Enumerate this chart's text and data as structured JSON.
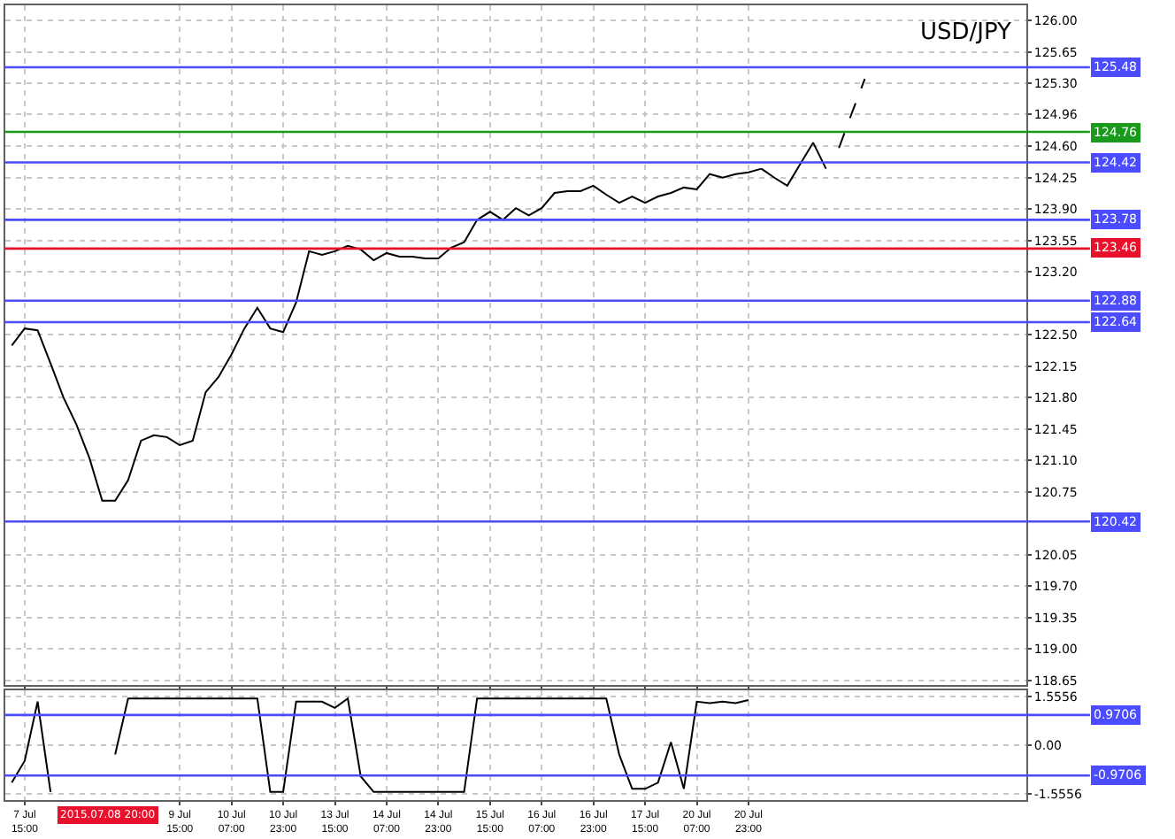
{
  "chart_data": [
    {
      "type": "line",
      "title": "USD/JPY",
      "series": [
        {
          "color": "#000000",
          "values": [
            122.38,
            122.57,
            122.55,
            122.18,
            121.8,
            121.5,
            121.13,
            120.65,
            120.65,
            120.88,
            121.32,
            121.38,
            121.36,
            121.27,
            121.32,
            121.86,
            122.03,
            122.28,
            122.57,
            122.8,
            122.57,
            122.53,
            122.86,
            123.43,
            123.39,
            123.43,
            123.49,
            123.45,
            123.33,
            123.41,
            123.37,
            123.37,
            123.35,
            123.35,
            123.47,
            123.53,
            123.78,
            123.87,
            123.78,
            123.91,
            123.83,
            123.91,
            124.08,
            124.1,
            124.1,
            124.16,
            124.06,
            123.97,
            124.04,
            123.97,
            124.04,
            124.08,
            124.14,
            124.12,
            124.29,
            124.25,
            124.29,
            124.31,
            124.35,
            null,
            null,
            null,
            null,
            null,
            null,
            null,
            null,
            null,
            null,
            null,
            null,
            null,
            null,
            null,
            null,
            null,
            null,
            null,
            null
          ]
        },
        {
          "color": "#000000",
          "values": [
            null,
            null,
            null,
            null,
            null,
            null,
            null,
            null,
            null,
            null,
            null,
            null,
            null,
            null,
            null,
            null,
            null,
            null,
            null,
            null,
            null,
            null,
            null,
            null,
            null,
            null,
            null,
            null,
            null,
            null,
            null,
            null,
            null,
            null,
            null,
            null,
            null,
            null,
            null,
            null,
            null,
            null,
            null,
            null,
            null,
            null,
            null,
            null,
            null,
            null,
            null,
            null,
            null,
            null,
            null,
            null,
            null,
            null,
            124.35,
            124.25,
            124.16,
            124.4,
            124.64,
            124.35,
            null,
            null,
            null,
            null,
            null,
            null,
            null,
            null,
            null,
            null,
            null,
            null,
            null,
            null,
            null
          ]
        },
        {
          "color": "#000000",
          "line_style": "dashed",
          "values": [
            null,
            null,
            null,
            null,
            null,
            null,
            null,
            null,
            null,
            null,
            null,
            null,
            null,
            null,
            null,
            null,
            null,
            null,
            null,
            null,
            null,
            null,
            null,
            null,
            null,
            null,
            null,
            null,
            null,
            null,
            null,
            null,
            null,
            null,
            null,
            null,
            null,
            null,
            null,
            null,
            null,
            null,
            null,
            null,
            null,
            null,
            null,
            null,
            null,
            null,
            null,
            null,
            null,
            null,
            null,
            null,
            null,
            null,
            null,
            null,
            null,
            null,
            null,
            null,
            124.58,
            124.97,
            125.35,
            null,
            null,
            null,
            null,
            null,
            null,
            null,
            null,
            null,
            null,
            null,
            null
          ]
        }
      ],
      "ylim": [
        118.6,
        126.17
      ],
      "yticks": [
        {
          "value": 126,
          "label": "126.00"
        },
        {
          "value": 125.65,
          "label": "125.65"
        },
        {
          "value": 125.3,
          "label": "125.30"
        },
        {
          "value": 124.96,
          "label": "124.96"
        },
        {
          "value": 124.6,
          "label": "124.60"
        },
        {
          "value": 124.25,
          "label": "124.25"
        },
        {
          "value": 123.9,
          "label": "123.90"
        },
        {
          "value": 123.55,
          "label": "123.55"
        },
        {
          "value": 123.2,
          "label": "123.20"
        },
        {
          "value": 122.5,
          "label": "122.50"
        },
        {
          "value": 122.15,
          "label": "122.15"
        },
        {
          "value": 121.8,
          "label": "121.80"
        },
        {
          "value": 121.45,
          "label": "121.45"
        },
        {
          "value": 121.1,
          "label": "121.10"
        },
        {
          "value": 120.75,
          "label": "120.75"
        },
        {
          "value": 120.05,
          "label": "120.05"
        },
        {
          "value": 119.7,
          "label": "119.70"
        },
        {
          "value": 119.35,
          "label": "119.35"
        },
        {
          "value": 119,
          "label": "119.00"
        },
        {
          "value": 118.65,
          "label": "118.65"
        }
      ],
      "ref_lines": [
        {
          "axis": "y",
          "value": 125.48,
          "label": "125.48",
          "color": "#4b4bff"
        },
        {
          "axis": "y",
          "value": 124.76,
          "label": "124.76",
          "color": "#1a9a1a"
        },
        {
          "axis": "y",
          "value": 124.42,
          "label": "124.42",
          "color": "#4b4bff"
        },
        {
          "axis": "y",
          "value": 123.78,
          "label": "123.78",
          "color": "#4b4bff"
        },
        {
          "axis": "y",
          "value": 123.46,
          "label": "123.46",
          "color": "#e8102a"
        },
        {
          "axis": "y",
          "value": 122.88,
          "label": "122.88",
          "color": "#4b4bff"
        },
        {
          "axis": "y",
          "value": 122.64,
          "label": "122.64",
          "color": "#4b4bff"
        },
        {
          "axis": "y",
          "value": 120.42,
          "label": "120.42",
          "color": "#4b4bff"
        }
      ],
      "grid": true,
      "tick_labels": "y"
    },
    {
      "type": "line",
      "categories": [
        null,
        "7 Jul 15:00",
        null,
        null,
        null,
        null,
        null,
        null,
        null,
        null,
        null,
        null,
        null,
        "9 Jul 15:00",
        null,
        null,
        null,
        "10 Jul 07:00",
        null,
        null,
        null,
        "10 Jul 23:00",
        null,
        null,
        null,
        "13 Jul 15:00",
        null,
        null,
        null,
        "14 Jul 07:00",
        null,
        null,
        null,
        "14 Jul 23:00",
        null,
        null,
        null,
        "15 Jul 15:00",
        null,
        null,
        null,
        "16 Jul 07:00",
        null,
        null,
        null,
        "16 Jul 23:00",
        null,
        null,
        null,
        "17 Jul 15:00",
        null,
        null,
        null,
        "20 Jul 07:00",
        null,
        null,
        null,
        "20 Jul 23:00",
        null,
        null,
        null,
        null,
        null,
        null,
        null,
        null,
        null,
        null,
        null,
        null,
        null,
        null,
        null,
        null,
        null,
        null,
        null,
        null,
        null
      ],
      "series": [
        {
          "color": "#000000",
          "values": [
            -1.2,
            -0.5,
            1.4,
            -1.5,
            null,
            null,
            null,
            null,
            -0.3,
            1.5,
            1.5,
            1.5,
            1.5,
            1.5,
            1.5,
            1.5,
            1.5,
            1.5,
            1.5,
            1.5,
            -1.5,
            -1.5,
            1.4,
            1.4,
            1.4,
            1.2,
            1.5,
            -1.0,
            -1.5,
            -1.5,
            -1.5,
            -1.5,
            -1.5,
            -1.5,
            -1.5,
            -1.5,
            1.5,
            1.5,
            1.5,
            1.5,
            1.5,
            1.5,
            1.5,
            1.5,
            1.5,
            1.5,
            1.5,
            -0.3,
            -1.4,
            -1.4,
            -1.2,
            0.1,
            -1.4,
            1.4,
            1.35,
            1.4,
            1.35,
            1.45,
            null,
            null,
            null,
            null,
            null,
            null,
            null,
            null,
            null,
            null,
            null,
            null,
            null,
            null,
            null,
            null,
            null,
            null,
            null,
            null,
            null
          ]
        }
      ],
      "ylim": [
        -1.76,
        1.76
      ],
      "yticks": [
        1.5556,
        {
          "value": 0,
          "label": "0.00"
        },
        -1.5556
      ],
      "ref_lines": [
        {
          "axis": "y",
          "value": 0.9706,
          "label": "0.9706",
          "color": "#4b4bff"
        },
        {
          "axis": "y",
          "value": -0.9706,
          "label": "-0.9706",
          "color": "#4b4bff"
        }
      ],
      "annotations": [
        "2015.07.08 20:00"
      ],
      "grid": true
    }
  ]
}
